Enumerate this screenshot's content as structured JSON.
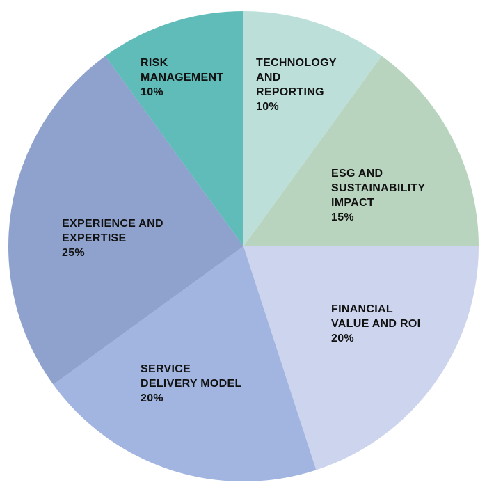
{
  "chart_data": {
    "type": "pie",
    "slices": [
      {
        "label_lines": [
          "TECHNOLOGY",
          "AND",
          "REPORTING"
        ],
        "value_text": "10%",
        "value": 10,
        "color": "#bddfda"
      },
      {
        "label_lines": [
          "ESG AND",
          "SUSTAINABILITY",
          "IMPACT"
        ],
        "value_text": "15%",
        "value": 15,
        "color": "#b9d4be"
      },
      {
        "label_lines": [
          "FINANCIAL",
          "VALUE AND ROI"
        ],
        "value_text": "20%",
        "value": 20,
        "color": "#cdd4ee"
      },
      {
        "label_lines": [
          "SERVICE",
          "DELIVERY MODEL"
        ],
        "value_text": "20%",
        "value": 20,
        "color": "#a1b5e0"
      },
      {
        "label_lines": [
          "EXPERIENCE AND",
          "EXPERTISE"
        ],
        "value_text": "25%",
        "value": 25,
        "color": "#8fa2cd"
      },
      {
        "label_lines": [
          "RISK",
          "MANAGEMENT"
        ],
        "value_text": "10%",
        "value": 10,
        "color": "#5fbcb9"
      }
    ]
  }
}
